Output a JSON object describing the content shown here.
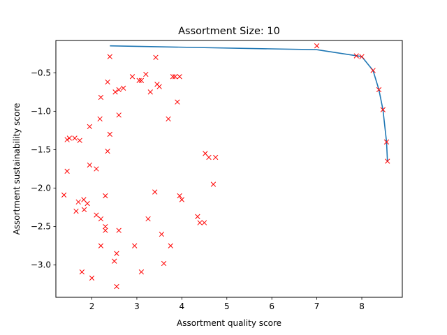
{
  "chart_data": {
    "type": "scatter",
    "title": "Assortment Size: 10",
    "xlabel": "Assortment quality score",
    "ylabel": "Assortment sustainability score",
    "xlim": [
      1.2,
      8.9
    ],
    "ylim": [
      -3.42,
      -0.08
    ],
    "xticks": [
      2,
      3,
      4,
      5,
      6,
      7,
      8
    ],
    "yticks": [
      -3.0,
      -2.5,
      -2.0,
      -1.5,
      -1.0,
      -0.5
    ],
    "xtick_labels": [
      "2",
      "3",
      "4",
      "5",
      "6",
      "7",
      "8"
    ],
    "ytick_labels": [
      "−3.0",
      "−2.5",
      "−2.0",
      "−1.5",
      "−1.0",
      "−0.5"
    ],
    "grid": false,
    "frontier_color": "#1f77b4",
    "marker_color": "#ff0000",
    "frontier": {
      "x": [
        2.4,
        7.0,
        7.9,
        8.0,
        8.25,
        8.38,
        8.47,
        8.55,
        8.57
      ],
      "y": [
        -0.15,
        -0.2,
        -0.28,
        -0.29,
        -0.47,
        -0.72,
        -0.98,
        -1.4,
        -1.65
      ]
    },
    "scatter": {
      "x": [
        2.4,
        7.0,
        7.88,
        8.0,
        8.25,
        8.38,
        8.47,
        8.55,
        8.57,
        3.42,
        2.52,
        2.35,
        2.2,
        2.18,
        1.95,
        1.45,
        1.5,
        1.62,
        1.73,
        1.95,
        2.1,
        1.38,
        2.3,
        2.35,
        1.45,
        1.7,
        1.82,
        1.9,
        1.65,
        2.1,
        1.83,
        1.78,
        2.0,
        2.55,
        2.5,
        2.2,
        2.3,
        2.95,
        3.1,
        3.6,
        3.55,
        3.75,
        4.5,
        4.4,
        4.35,
        4.52,
        4.6,
        4.75,
        4.7,
        3.8,
        3.85,
        3.95,
        3.9,
        3.7,
        3.95,
        4.0,
        3.4,
        3.25,
        2.6,
        2.55,
        2.6,
        2.9,
        3.05,
        3.1,
        3.2,
        3.3,
        3.45,
        3.5,
        2.7,
        2.6,
        2.4,
        2.3,
        2.2
      ],
      "y": [
        -0.29,
        -0.15,
        -0.28,
        -0.29,
        -0.47,
        -0.72,
        -0.98,
        -1.4,
        -1.65,
        -0.3,
        -0.75,
        -0.62,
        -0.82,
        -1.1,
        -1.2,
        -1.37,
        -1.35,
        -1.35,
        -1.38,
        -1.7,
        -1.75,
        -2.09,
        -2.1,
        -1.52,
        -1.78,
        -2.18,
        -2.15,
        -2.2,
        -2.3,
        -2.35,
        -2.28,
        -3.09,
        -3.17,
        -3.28,
        -2.95,
        -2.75,
        -2.55,
        -2.75,
        -3.09,
        -2.98,
        -2.6,
        -2.75,
        -2.45,
        -2.45,
        -2.37,
        -1.55,
        -1.6,
        -1.6,
        -1.95,
        -0.55,
        -0.55,
        -0.55,
        -0.88,
        -1.1,
        -2.1,
        -2.15,
        -2.05,
        -2.4,
        -2.55,
        -2.85,
        -0.72,
        -0.55,
        -0.6,
        -0.6,
        -0.52,
        -0.75,
        -0.65,
        -0.68,
        -0.7,
        -1.05,
        -1.3,
        -2.5,
        -2.4
      ]
    }
  }
}
